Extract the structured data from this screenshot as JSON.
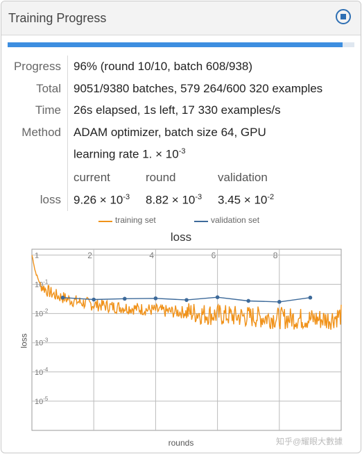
{
  "header": {
    "title": "Training Progress",
    "stop_icon": "stop-icon"
  },
  "progress": {
    "fraction": 0.965
  },
  "rows": {
    "progress_label": "Progress",
    "progress_value": "96% (round 10/10, batch 608/938)",
    "total_label": "Total",
    "total_value": "9051/9380 batches, 579 264/600 320 examples",
    "time_label": "Time",
    "time_value": "26s elapsed, 1s left, 17 330 examples/s",
    "method_label": "Method",
    "method_value": "ADAM optimizer, batch size 64, GPU",
    "lr_prefix": "learning rate 1. × 10",
    "lr_exp": "-3"
  },
  "loss_table": {
    "label": "loss",
    "col_current": "current",
    "col_round": "round",
    "col_validation": "validation",
    "current_mant": "9.26 × 10",
    "current_exp": "-3",
    "round_mant": "8.82 × 10",
    "round_exp": "-3",
    "validation_mant": "3.45 × 10",
    "validation_exp": "-2"
  },
  "colors": {
    "training": "#f0921a",
    "validation": "#3d6a9a",
    "accent": "#2e6fb3"
  },
  "chart_data": {
    "type": "line",
    "title": "loss",
    "xlabel": "rounds",
    "ylabel": "loss",
    "legend": [
      "training set",
      "validation set"
    ],
    "legend_placement": "top-center",
    "x_ticks": [
      "2",
      "4",
      "6",
      "8"
    ],
    "y_ticks": [
      "1",
      "10^-1",
      "10^-2",
      "10^-3",
      "10^-4",
      "10^-5"
    ],
    "xlim": [
      0,
      10
    ],
    "ylim_log10": [
      -6,
      0.2
    ],
    "grid": true,
    "series": [
      {
        "name": "training set",
        "x": [
          0.0,
          0.05,
          0.1,
          0.2,
          0.3,
          0.5,
          0.7,
          1.0,
          1.3,
          1.6,
          2.0,
          2.3,
          2.6,
          3.0,
          3.3,
          3.6,
          4.0,
          4.3,
          4.6,
          5.0,
          5.3,
          5.6,
          6.0,
          6.3,
          6.6,
          7.0,
          7.3,
          7.6,
          8.0,
          8.3,
          8.6,
          9.0,
          9.3,
          9.6,
          10.0
        ],
        "y": [
          1.0,
          0.6,
          0.3,
          0.15,
          0.09,
          0.06,
          0.045,
          0.035,
          0.028,
          0.024,
          0.02,
          0.019,
          0.017,
          0.016,
          0.015,
          0.014,
          0.013,
          0.012,
          0.0115,
          0.011,
          0.0105,
          0.0095,
          0.009,
          0.0085,
          0.008,
          0.0078,
          0.0075,
          0.0072,
          0.007,
          0.0068,
          0.0066,
          0.0065,
          0.0064,
          0.0063,
          0.0088
        ]
      },
      {
        "name": "validation set",
        "x": [
          1,
          2,
          3,
          4,
          5,
          6,
          7,
          8,
          9
        ],
        "y": [
          0.035,
          0.03,
          0.032,
          0.033,
          0.029,
          0.036,
          0.027,
          0.025,
          0.035
        ]
      }
    ]
  },
  "watermark": "知乎@耀眼大數據"
}
